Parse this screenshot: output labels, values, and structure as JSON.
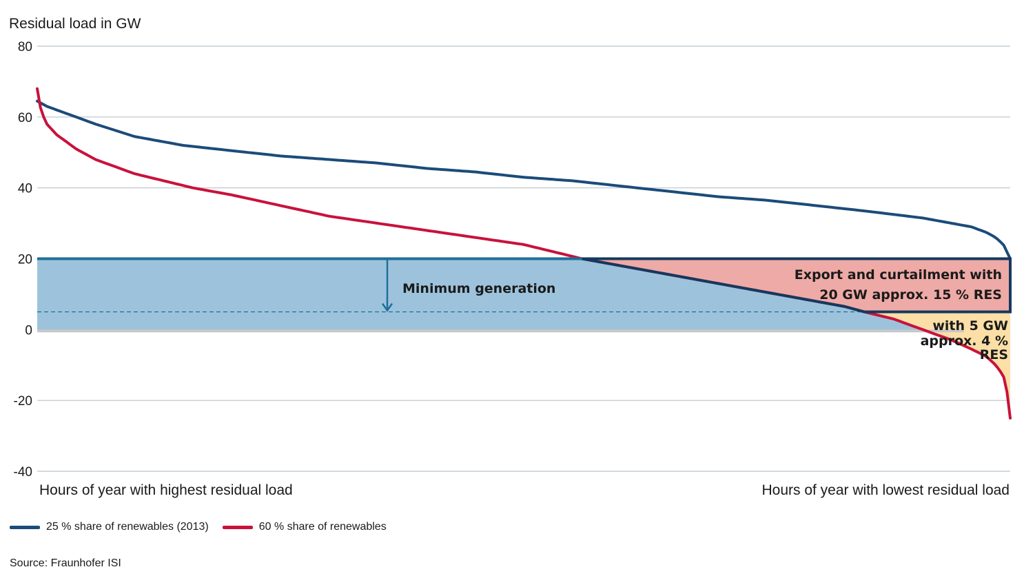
{
  "chart_data": {
    "type": "line",
    "ylabel": "Residual load in GW",
    "ylim": [
      -40,
      80
    ],
    "yticks": [
      80,
      60,
      40,
      20,
      0,
      -20,
      -40
    ],
    "xlabel_left": "Hours of year with highest residual load",
    "xlabel_right": "Hours of year with lowest residual load",
    "x_unit_note": "fraction of the year's hours, sorted from highest to lowest residual load (0 to 1)",
    "grid": true,
    "legend_position": "bottom-left",
    "series": [
      {
        "name": "25 % share of renewables (2013)",
        "color": "#1b4b7a",
        "x": [
          0,
          0.01,
          0.03,
          0.06,
          0.1,
          0.15,
          0.2,
          0.25,
          0.3,
          0.35,
          0.4,
          0.45,
          0.5,
          0.55,
          0.6,
          0.65,
          0.7,
          0.75,
          0.8,
          0.85,
          0.88,
          0.91,
          0.94,
          0.96,
          0.975,
          0.985,
          0.993,
          1.0
        ],
        "y": [
          64.5,
          63,
          61,
          58,
          54.5,
          52,
          50.5,
          49,
          48,
          47,
          45.5,
          44.5,
          43,
          42,
          40.5,
          39,
          37.5,
          36.5,
          35,
          33.5,
          32.5,
          31.5,
          30,
          29,
          27.5,
          26,
          24,
          20
        ]
      },
      {
        "name": "60 % share of renewables",
        "color": "#c8123c",
        "x": [
          0,
          0.002,
          0.005,
          0.01,
          0.02,
          0.04,
          0.06,
          0.08,
          0.1,
          0.13,
          0.16,
          0.2,
          0.25,
          0.3,
          0.35,
          0.4,
          0.45,
          0.5,
          0.53,
          0.56,
          0.6,
          0.65,
          0.7,
          0.75,
          0.8,
          0.83,
          0.85,
          0.88,
          0.9,
          0.92,
          0.94,
          0.96,
          0.975,
          0.985,
          0.993,
          0.997,
          1.0
        ],
        "y": [
          68,
          64,
          61,
          58,
          55,
          51,
          48,
          46,
          44,
          42,
          40,
          38,
          35,
          32,
          30,
          28,
          26,
          24,
          22,
          20,
          18,
          15.5,
          13,
          10.5,
          8,
          6.5,
          5,
          3,
          1,
          -1,
          -3,
          -5.5,
          -7.5,
          -10,
          -13,
          -18,
          -25
        ]
      }
    ],
    "annotations": {
      "minimum_generation": "Minimum generation",
      "export_line1": "Export and curtailment with",
      "export_line2": "20 GW approx. 15 % RES",
      "five_gw_line1": "with 5 GW",
      "five_gw_line2": "approx. 4 %",
      "five_gw_line3": "RES",
      "min_generation_levels_gw": [
        20,
        5
      ]
    },
    "colors": {
      "min_generation_fill": "#9dc3dc",
      "min_generation_line": "#1f6f99",
      "export_fill": "#eeaaa6",
      "export_box": "#16385e",
      "five_gw_fill": "#fbdfa6",
      "zero_band": "#c8c8c8",
      "grid": "#b9c3cc"
    }
  },
  "source": "Source: Fraunhofer ISI"
}
